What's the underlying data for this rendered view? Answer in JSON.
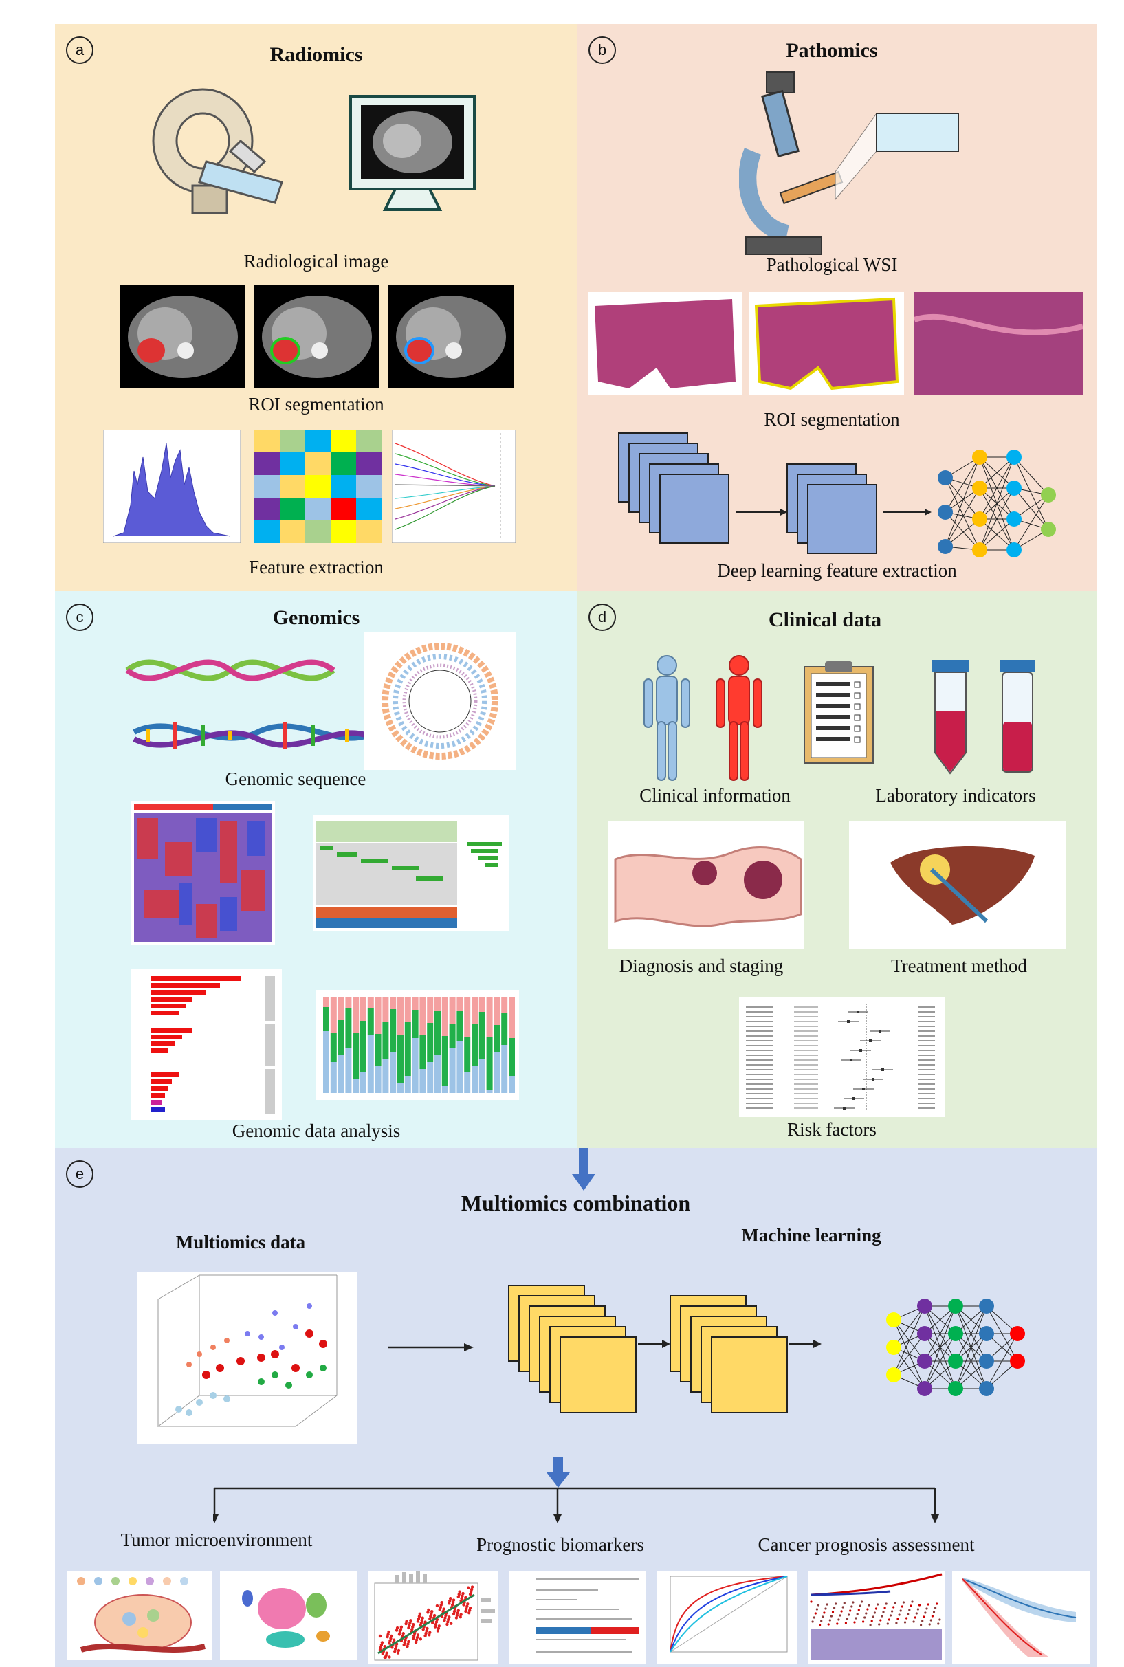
{
  "panels": {
    "a": {
      "letter": "a",
      "title": "Radiomics",
      "captions": [
        "Radiological image",
        "ROI segmentation",
        "Feature extraction"
      ],
      "color": "#fbe9c6"
    },
    "b": {
      "letter": "b",
      "title": "Pathomics",
      "captions": [
        "Pathological WSI",
        "ROI segmentation",
        "Deep learning feature extraction"
      ],
      "color": "#f8e0d2"
    },
    "c": {
      "letter": "c",
      "title": "Genomics",
      "captions": [
        "Genomic sequence",
        "Genomic data analysis"
      ],
      "color": "#e0f6f8"
    },
    "d": {
      "letter": "d",
      "title": "Clinical data",
      "captions": [
        "Clinical information",
        "Laboratory indicators",
        "Diagnosis and staging",
        "Treatment method",
        "Risk factors"
      ],
      "color": "#e3efd8"
    },
    "e": {
      "letter": "e",
      "title": "Multiomics combination",
      "subtitle_left": "Multiomics data",
      "subtitle_right": "Machine learning",
      "outcomes": [
        "Tumor microenvironment",
        "Prognostic biomarkers",
        "Cancer prognosis assessment"
      ],
      "color": "#d9e1f2"
    }
  },
  "colors": {
    "arrow_blue": "#4472c4",
    "square_blue": "#8ea9db",
    "square_yellow": "#ffd966",
    "node_blue": "#2e75b6",
    "node_orange": "#ffc000",
    "node_cyan": "#00b0f0",
    "node_green": "#92d050",
    "node_purple": "#7030a0",
    "node_red": "#ff0000",
    "node_yellow": "#ffff00"
  }
}
